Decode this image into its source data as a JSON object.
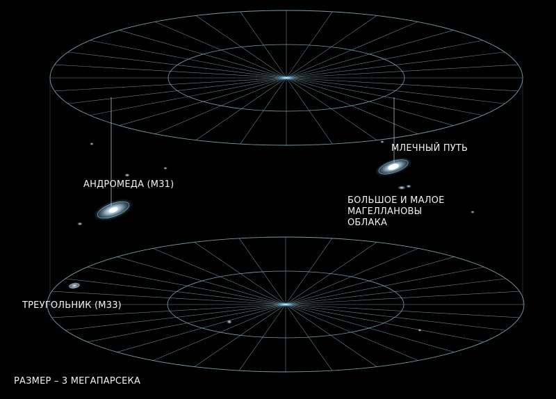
{
  "labels": {
    "milky_way": "МЛЕЧНЫЙ ПУТЬ",
    "andromeda": "АНДРОМЕДА (M31)",
    "magellanic": [
      "БОЛЬШОЕ И МАЛОЕ",
      "МАГЕЛЛАНОВЫ",
      "ОБЛАКА"
    ],
    "triangulum": "ТРЕУГОЛЬНИК (M33)",
    "scale": "РАЗМЕР – 3 МЕГАПАРСЕКА"
  },
  "colors": {
    "background": "#000000",
    "grid": "#7f9aa8",
    "text": "#f2f2f2",
    "galaxy_glow": "#bfe6ff"
  }
}
